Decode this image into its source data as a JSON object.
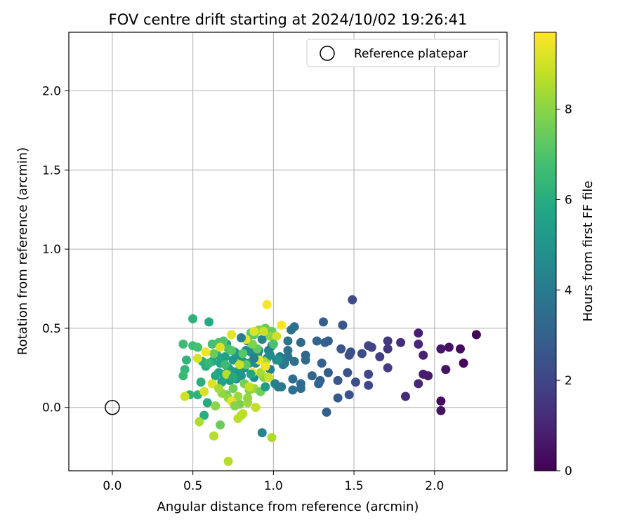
{
  "chart_data": {
    "type": "scatter",
    "title": "FOV centre drift starting at 2024/10/02 19:26:41",
    "xlabel": "Angular distance from reference (arcmin)",
    "ylabel": "Rotation from reference (arcmin)",
    "xlim": [
      -0.27,
      2.45
    ],
    "ylim": [
      -0.4,
      2.37
    ],
    "xticks": [
      "0.0",
      "0.5",
      "1.0",
      "1.5",
      "2.0"
    ],
    "yticks": [
      "0.0",
      "0.5",
      "1.0",
      "1.5",
      "2.0"
    ],
    "grid": true,
    "legend": {
      "position": "upper right",
      "entries": [
        "Reference platepar"
      ]
    },
    "colorbar": {
      "label": "Hours from first FF file",
      "colormap": "viridis",
      "range": [
        0,
        9.7
      ],
      "ticks": [
        "0",
        "2",
        "4",
        "6",
        "8"
      ]
    },
    "reference_point": {
      "x": 0.0,
      "y": 0.0
    },
    "points": [
      [
        2.26,
        0.46,
        0.1
      ],
      [
        2.18,
        0.28,
        0.2
      ],
      [
        2.16,
        0.37,
        0.3
      ],
      [
        2.09,
        0.38,
        0.4
      ],
      [
        2.07,
        0.24,
        0.5
      ],
      [
        2.04,
        0.37,
        0.6
      ],
      [
        2.04,
        0.04,
        0.3
      ],
      [
        2.04,
        -0.02,
        0.5
      ],
      [
        1.96,
        0.2,
        0.7
      ],
      [
        1.93,
        0.21,
        0.8
      ],
      [
        1.93,
        0.33,
        0.9
      ],
      [
        1.9,
        0.47,
        0.8
      ],
      [
        1.9,
        0.4,
        1.0
      ],
      [
        1.9,
        0.15,
        1.1
      ],
      [
        1.82,
        0.07,
        1.2
      ],
      [
        1.79,
        0.41,
        1.3
      ],
      [
        1.71,
        0.37,
        1.5
      ],
      [
        1.71,
        0.42,
        1.6
      ],
      [
        1.71,
        0.25,
        1.7
      ],
      [
        1.66,
        0.32,
        1.8
      ],
      [
        1.61,
        0.38,
        1.9
      ],
      [
        1.59,
        0.39,
        2.0
      ],
      [
        1.59,
        0.21,
        2.0
      ],
      [
        1.59,
        0.14,
        2.1
      ],
      [
        1.55,
        0.34,
        2.2
      ],
      [
        1.51,
        0.16,
        2.3
      ],
      [
        1.49,
        0.68,
        2.2
      ],
      [
        1.48,
        0.35,
        2.4
      ],
      [
        1.47,
        0.33,
        2.4
      ],
      [
        1.47,
        0.08,
        2.5
      ],
      [
        1.46,
        0.22,
        2.5
      ],
      [
        1.43,
        0.52,
        2.6
      ],
      [
        1.42,
        0.37,
        2.6
      ],
      [
        1.4,
        0.17,
        2.7
      ],
      [
        1.4,
        0.06,
        2.7
      ],
      [
        1.34,
        0.42,
        2.8
      ],
      [
        1.34,
        0.22,
        2.8
      ],
      [
        1.33,
        -0.03,
        2.9
      ],
      [
        1.32,
        0.41,
        2.9
      ],
      [
        1.31,
        0.54,
        2.9
      ],
      [
        1.3,
        0.28,
        3.0
      ],
      [
        1.29,
        0.17,
        3.0
      ],
      [
        1.28,
        0.15,
        3.1
      ],
      [
        1.27,
        0.42,
        3.1
      ],
      [
        1.24,
        0.2,
        3.2
      ],
      [
        1.2,
        0.33,
        3.2
      ],
      [
        1.2,
        0.3,
        3.3
      ],
      [
        1.17,
        0.41,
        3.3
      ],
      [
        1.17,
        0.15,
        3.4
      ],
      [
        1.17,
        0.12,
        3.4
      ],
      [
        1.13,
        0.51,
        3.5
      ],
      [
        1.13,
        0.29,
        3.5
      ],
      [
        1.12,
        0.18,
        3.5
      ],
      [
        1.12,
        0.11,
        3.6
      ],
      [
        1.11,
        0.49,
        3.6
      ],
      [
        1.09,
        0.42,
        3.7
      ],
      [
        1.09,
        0.36,
        3.7
      ],
      [
        1.09,
        0.32,
        3.8
      ],
      [
        1.07,
        0.28,
        3.8
      ],
      [
        1.06,
        0.27,
        3.9
      ],
      [
        1.05,
        0.13,
        3.9
      ],
      [
        1.04,
        0.32,
        4.0
      ],
      [
        1.03,
        0.13,
        4.0
      ],
      [
        1.02,
        0.3,
        4.1
      ],
      [
        1.01,
        0.15,
        4.1
      ],
      [
        0.99,
        0.39,
        4.2
      ],
      [
        0.98,
        0.24,
        4.2
      ],
      [
        0.97,
        0.36,
        4.3
      ],
      [
        0.96,
        0.31,
        4.3
      ],
      [
        0.93,
        -0.16,
        4.4
      ],
      [
        0.93,
        0.43,
        4.4
      ],
      [
        0.91,
        0.36,
        4.5
      ],
      [
        0.9,
        0.33,
        4.5
      ],
      [
        0.89,
        0.28,
        4.6
      ],
      [
        0.88,
        0.19,
        4.6
      ],
      [
        0.86,
        0.35,
        4.7
      ],
      [
        0.85,
        0.28,
        4.7
      ],
      [
        0.84,
        0.42,
        4.8
      ],
      [
        0.83,
        0.36,
        4.8
      ],
      [
        0.82,
        0.25,
        4.9
      ],
      [
        0.81,
        0.29,
        4.9
      ],
      [
        0.8,
        0.2,
        5.0
      ],
      [
        0.79,
        0.33,
        5.0
      ],
      [
        0.78,
        0.23,
        5.1
      ],
      [
        0.77,
        0.18,
        5.1
      ],
      [
        0.76,
        0.35,
        5.2
      ],
      [
        0.75,
        0.3,
        5.2
      ],
      [
        0.74,
        0.23,
        5.3
      ],
      [
        0.73,
        0.17,
        5.3
      ],
      [
        0.72,
        0.25,
        5.4
      ],
      [
        0.71,
        0.4,
        5.4
      ],
      [
        0.7,
        0.32,
        5.5
      ],
      [
        0.69,
        0.21,
        5.5
      ],
      [
        0.68,
        0.16,
        5.6
      ],
      [
        0.67,
        0.28,
        5.6
      ],
      [
        0.66,
        0.22,
        5.7
      ],
      [
        0.65,
        0.33,
        5.7
      ],
      [
        0.64,
        0.2,
        5.8
      ],
      [
        0.62,
        0.29,
        5.8
      ],
      [
        0.6,
        0.54,
        5.9
      ],
      [
        0.59,
        0.03,
        5.9
      ],
      [
        0.58,
        0.26,
        6.0
      ],
      [
        0.57,
        -0.05,
        6.0
      ],
      [
        0.56,
        0.29,
        6.1
      ],
      [
        0.55,
        0.16,
        6.1
      ],
      [
        0.53,
        0.08,
        6.2
      ],
      [
        0.5,
        0.56,
        6.2
      ],
      [
        0.48,
        0.08,
        6.3
      ],
      [
        0.46,
        0.3,
        6.3
      ],
      [
        0.45,
        0.24,
        6.4
      ],
      [
        0.44,
        0.2,
        6.5
      ],
      [
        0.44,
        0.4,
        6.6
      ],
      [
        0.5,
        0.39,
        6.7
      ],
      [
        0.53,
        0.38,
        6.8
      ],
      [
        0.62,
        0.4,
        6.8
      ],
      [
        0.66,
        0.41,
        6.9
      ],
      [
        0.69,
        0.42,
        7.0
      ],
      [
        0.72,
        0.37,
        7.0
      ],
      [
        0.74,
        0.36,
        7.1
      ],
      [
        0.81,
        0.34,
        7.1
      ],
      [
        0.83,
        0.27,
        7.2
      ],
      [
        0.86,
        0.47,
        7.2
      ],
      [
        0.88,
        0.46,
        7.3
      ],
      [
        0.9,
        0.37,
        7.3
      ],
      [
        0.95,
        0.5,
        7.4
      ],
      [
        0.99,
        0.48,
        7.4
      ],
      [
        0.63,
        0.34,
        7.5
      ],
      [
        0.67,
        -0.11,
        7.5
      ],
      [
        0.71,
        0.08,
        7.6
      ],
      [
        0.75,
        0.12,
        7.6
      ],
      [
        0.79,
        0.02,
        7.7
      ],
      [
        0.82,
        0.15,
        7.7
      ],
      [
        0.85,
        0.11,
        7.8
      ],
      [
        0.87,
        0.4,
        7.8
      ],
      [
        0.91,
        0.49,
        7.9
      ],
      [
        0.94,
        0.19,
        7.9
      ],
      [
        0.98,
        0.45,
        8.0
      ],
      [
        0.64,
        0.01,
        8.0
      ],
      [
        0.68,
        0.09,
        8.1
      ],
      [
        0.72,
        0.06,
        8.1
      ],
      [
        0.78,
        0.07,
        8.2
      ],
      [
        0.8,
        -0.05,
        8.2
      ],
      [
        0.84,
        0.03,
        8.3
      ],
      [
        0.88,
        0.12,
        8.3
      ],
      [
        0.92,
        0.22,
        8.4
      ],
      [
        0.95,
        0.29,
        8.4
      ],
      [
        0.99,
        -0.19,
        8.5
      ],
      [
        0.54,
        -0.09,
        8.5
      ],
      [
        0.63,
        -0.18,
        8.6
      ],
      [
        0.72,
        -0.34,
        8.6
      ],
      [
        0.78,
        -0.07,
        8.7
      ],
      [
        0.81,
        -0.04,
        8.7
      ],
      [
        0.85,
        0.13,
        8.8
      ],
      [
        0.89,
        0.0,
        8.8
      ],
      [
        0.94,
        0.48,
        8.9
      ],
      [
        0.97,
        0.19,
        8.9
      ],
      [
        1.02,
        0.45,
        9.0
      ],
      [
        0.45,
        0.07,
        9.0
      ],
      [
        0.53,
        0.31,
        9.1
      ],
      [
        0.57,
        0.1,
        9.1
      ],
      [
        0.62,
        0.15,
        9.2
      ],
      [
        0.67,
        0.38,
        9.2
      ],
      [
        0.74,
        0.46,
        9.3
      ],
      [
        0.83,
        0.43,
        9.3
      ],
      [
        0.87,
        0.22,
        9.4
      ],
      [
        0.91,
        0.3,
        9.4
      ],
      [
        0.95,
        0.26,
        9.5
      ],
      [
        0.96,
        0.65,
        9.6
      ],
      [
        1.05,
        0.52,
        9.6
      ],
      [
        0.58,
        0.35,
        9.5
      ],
      [
        0.74,
        0.04,
        9.3
      ],
      [
        0.88,
        0.48,
        9.2
      ],
      [
        0.79,
        0.27,
        8.9
      ],
      [
        0.71,
        0.21,
        8.6
      ],
      [
        0.66,
        0.12,
        8.4
      ],
      [
        0.84,
        0.06,
        8.1
      ],
      [
        0.76,
        0.01,
        7.9
      ],
      [
        0.92,
        0.1,
        7.6
      ],
      [
        1.0,
        0.4,
        6.9
      ],
      [
        0.6,
        0.28,
        6.4
      ],
      [
        0.7,
        0.27,
        6.6
      ],
      [
        0.75,
        0.19,
        5.9
      ],
      [
        0.86,
        0.21,
        5.6
      ],
      [
        0.95,
        0.13,
        5.3
      ],
      [
        1.03,
        0.3,
        4.9
      ],
      [
        0.98,
        0.33,
        4.6
      ],
      [
        0.88,
        0.31,
        4.2
      ],
      [
        0.8,
        0.44,
        4.0
      ]
    ]
  }
}
